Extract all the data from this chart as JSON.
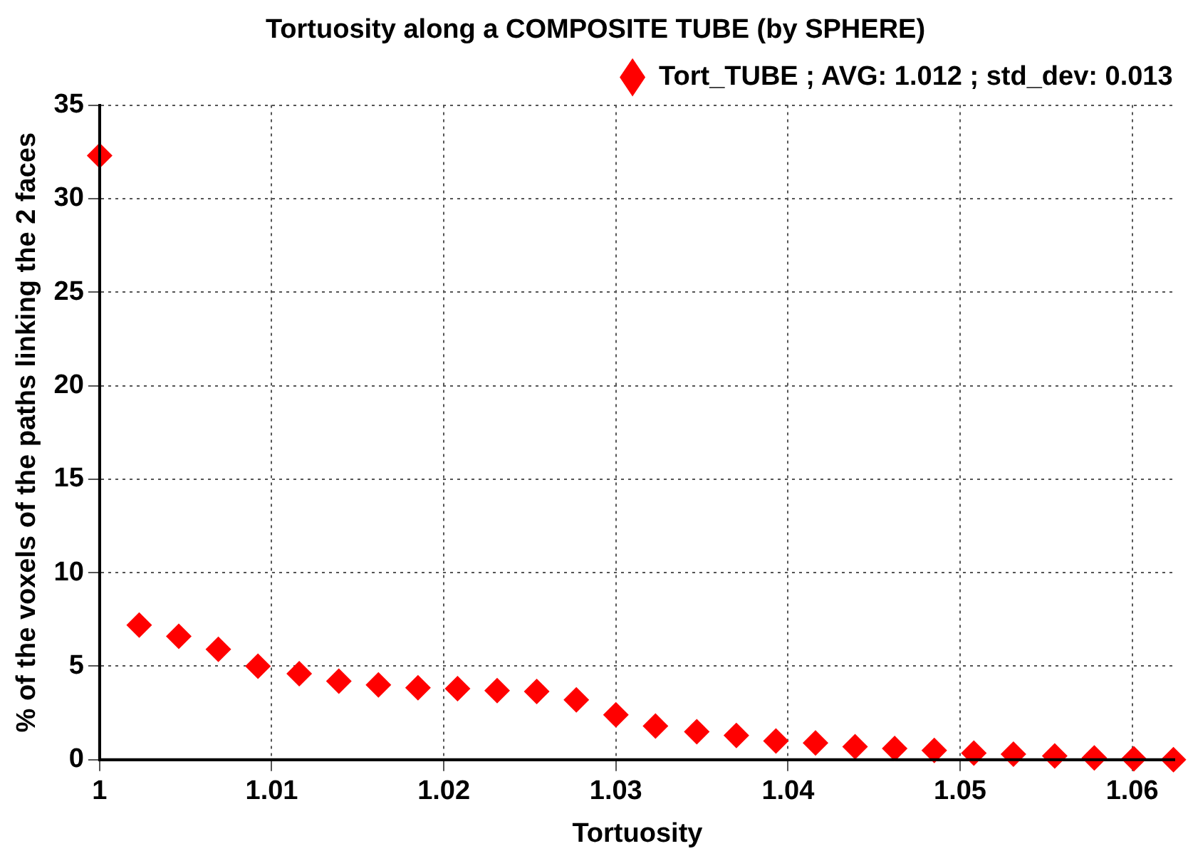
{
  "chart_data": {
    "type": "scatter",
    "title": "Tortuosity along a COMPOSITE TUBE (by SPHERE)",
    "xlabel": "Tortuosity",
    "ylabel": "% of the voxels of the paths linking the 2 faces",
    "x": [
      1,
      1.0023,
      1.0046,
      1.0069,
      1.0092,
      1.0116,
      1.0139,
      1.0162,
      1.0185,
      1.0208,
      1.0231,
      1.0254,
      1.0277,
      1.03,
      1.0323,
      1.0347,
      1.037,
      1.0393,
      1.0416,
      1.0439,
      1.0462,
      1.0485,
      1.0508,
      1.0531,
      1.0555,
      1.0578,
      1.0601,
      1.0624
    ],
    "series": [
      {
        "name": "Tort_TUBE ; AVG: 1.012 ; std_dev: 0.013",
        "color": "#ff0000",
        "values": [
          32.3,
          7.2,
          6.6,
          5.9,
          5.0,
          4.6,
          4.2,
          4.0,
          3.85,
          3.8,
          3.7,
          3.65,
          3.2,
          2.4,
          1.8,
          1.5,
          1.3,
          1.0,
          0.9,
          0.7,
          0.6,
          0.5,
          0.35,
          0.3,
          0.2,
          0.1,
          0.05,
          0
        ]
      }
    ],
    "xlim": [
      1,
      1.0625
    ],
    "ylim": [
      0,
      35
    ],
    "xticks": [
      1,
      1.01,
      1.02,
      1.03,
      1.04,
      1.05,
      1.06
    ],
    "yticks": [
      0,
      5,
      10,
      15,
      20,
      25,
      30,
      35
    ],
    "grid": true,
    "legend": "top right",
    "marker": "diamond"
  }
}
